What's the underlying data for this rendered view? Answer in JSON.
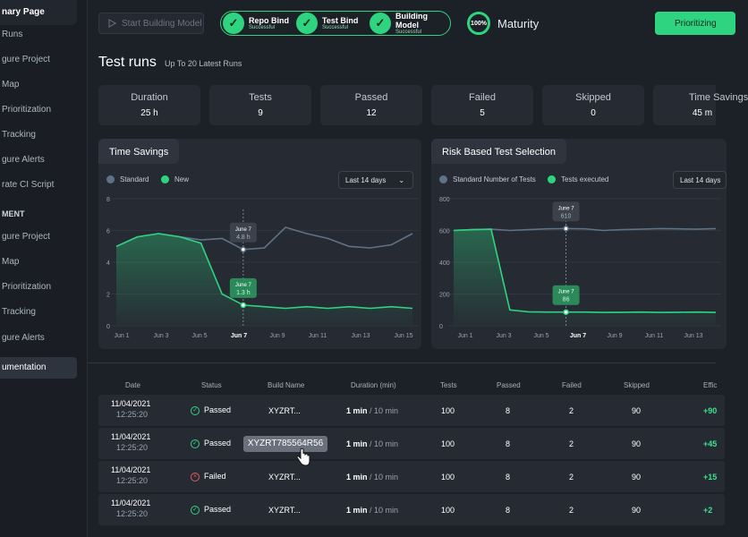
{
  "sidebar": {
    "items": [
      {
        "label": "nary Page",
        "type": "head"
      },
      {
        "label": "Runs",
        "type": "item"
      },
      {
        "label": "gure Project",
        "type": "item"
      },
      {
        "label": "Map",
        "type": "item"
      },
      {
        "label": "Prioritization",
        "type": "item"
      },
      {
        "label": "Tracking",
        "type": "item"
      },
      {
        "label": "gure Alerts",
        "type": "item"
      },
      {
        "label": "rate CI Script",
        "type": "item"
      },
      {
        "label": "MENT",
        "type": "section"
      },
      {
        "label": "gure Project",
        "type": "item"
      },
      {
        "label": "Map",
        "type": "item"
      },
      {
        "label": "Prioritization",
        "type": "item"
      },
      {
        "label": "Tracking",
        "type": "item"
      },
      {
        "label": "gure Alerts",
        "type": "item"
      },
      {
        "label": "umentation",
        "type": "active"
      }
    ]
  },
  "topbar": {
    "start_build_label": "Start Building Model",
    "steps": [
      {
        "title": "Repo Bind",
        "sub": "Successful"
      },
      {
        "title": "Test Bind",
        "sub": "Successful"
      },
      {
        "title": "Building Model",
        "sub": "Successful"
      }
    ],
    "maturity_percent": "100%",
    "maturity_label": "Maturity",
    "prioritizing_label": "Prioritizing",
    "accent": "#2fd480"
  },
  "header": {
    "title": "Test runs",
    "subtitle": "Up To 20 Latest Runs"
  },
  "stats": [
    {
      "label": "Duration",
      "value": "25 h"
    },
    {
      "label": "Tests",
      "value": "9"
    },
    {
      "label": "Passed",
      "value": "12"
    },
    {
      "label": "Failed",
      "value": "5"
    },
    {
      "label": "Skipped",
      "value": "0"
    },
    {
      "label": "Time Savings",
      "value": "45 m"
    }
  ],
  "chart_data": [
    {
      "type": "line",
      "title": "Time Savings",
      "range_label": "Last 14 days",
      "x": [
        "Jun 1",
        "Jun 3",
        "Jun 5",
        "Jun 7",
        "Jun 9",
        "Jun 11",
        "Jun 13",
        "Jun 15"
      ],
      "yticks": [
        "0",
        "2",
        "4",
        "6",
        "8"
      ],
      "ylim": [
        0,
        8
      ],
      "series": [
        {
          "name": "Standard",
          "color": "#5f7287",
          "x": [
            1,
            2,
            3,
            4,
            5,
            6,
            7,
            8,
            9,
            10,
            11,
            12,
            13,
            14,
            15
          ],
          "values": [
            5.0,
            5.6,
            5.8,
            5.6,
            5.4,
            5.5,
            4.8,
            4.9,
            6.2,
            5.8,
            5.5,
            5.0,
            4.9,
            5.1,
            5.8
          ]
        },
        {
          "name": "New",
          "color": "#2fd480",
          "x": [
            1,
            2,
            3,
            4,
            5,
            6,
            7,
            8,
            9,
            10,
            11,
            12,
            13,
            14,
            15
          ],
          "values": [
            5.0,
            5.6,
            5.8,
            5.6,
            5.2,
            2.0,
            1.3,
            1.2,
            1.1,
            1.2,
            1.1,
            1.2,
            1.1,
            1.2,
            1.1
          ]
        }
      ],
      "annotations": [
        {
          "date": "June 7",
          "value": "4.8 h",
          "series": "Standard"
        },
        {
          "date": "June 7",
          "value": "1.3 h",
          "series": "New"
        }
      ],
      "highlight_tick": "Jun 7"
    },
    {
      "type": "line",
      "title": "Risk Based Test Selection",
      "range_label": "Last 14 days",
      "x": [
        "Jun 1",
        "Jun 3",
        "Jun 5",
        "Jun 7",
        "Jun 9",
        "Jun 11",
        "Jun 13"
      ],
      "yticks": [
        "0",
        "200",
        "400",
        "600",
        "800"
      ],
      "ylim": [
        0,
        800
      ],
      "series": [
        {
          "name": "Standard Number of Tests",
          "color": "#5f7287",
          "x": [
            0,
            1,
            2,
            3,
            4,
            5,
            6,
            7,
            8,
            9,
            10,
            11,
            12,
            13,
            14
          ],
          "values": [
            600,
            605,
            608,
            600,
            605,
            610,
            612,
            610,
            600,
            605,
            608,
            612,
            610,
            608,
            612
          ]
        },
        {
          "name": "Tests executed",
          "color": "#2fd480",
          "x": [
            0,
            1,
            2,
            3,
            4,
            5,
            6,
            7,
            8,
            9,
            10,
            11,
            12,
            13,
            14
          ],
          "values": [
            600,
            605,
            608,
            100,
            88,
            86,
            86,
            86,
            84,
            85,
            86,
            84,
            85,
            86,
            84
          ]
        }
      ],
      "annotations": [
        {
          "date": "June 7",
          "value": "610",
          "series": "Standard Number of Tests"
        },
        {
          "date": "June 7",
          "value": "86",
          "series": "Tests executed"
        }
      ],
      "highlight_tick": "Jun 7"
    }
  ],
  "table": {
    "headers": [
      "Date",
      "Status",
      "Build Name",
      "Duration (min)",
      "Tests",
      "Passed",
      "Failed",
      "Skipped",
      "Effic"
    ],
    "rows": [
      {
        "date": "11/04/2021",
        "time": "12:25:20",
        "status": "Passed",
        "build": "XYZRT...",
        "dur_a": "1 min",
        "dur_b": "/ 10 min",
        "tests": "100",
        "passed": "8",
        "failed": "2",
        "skipped": "90",
        "eff": "+90"
      },
      {
        "date": "11/04/2021",
        "time": "12:25:20",
        "status": "Passed",
        "build": "XYZRT785564R56",
        "dur_a": "1 min",
        "dur_b": "/ 10 min",
        "tests": "100",
        "passed": "8",
        "failed": "2",
        "skipped": "90",
        "eff": "+45"
      },
      {
        "date": "11/04/2021",
        "time": "12:25:20",
        "status": "Failed",
        "build": "XYZRT...",
        "dur_a": "1 min",
        "dur_b": "/ 10 min",
        "tests": "100",
        "passed": "8",
        "failed": "2",
        "skipped": "90",
        "eff": "+15"
      },
      {
        "date": "11/04/2021",
        "time": "12:25:20",
        "status": "Passed",
        "build": "XYZRT...",
        "dur_a": "1 min",
        "dur_b": "/ 10 min",
        "tests": "100",
        "passed": "8",
        "failed": "2",
        "skipped": "90",
        "eff": "+2"
      }
    ]
  }
}
